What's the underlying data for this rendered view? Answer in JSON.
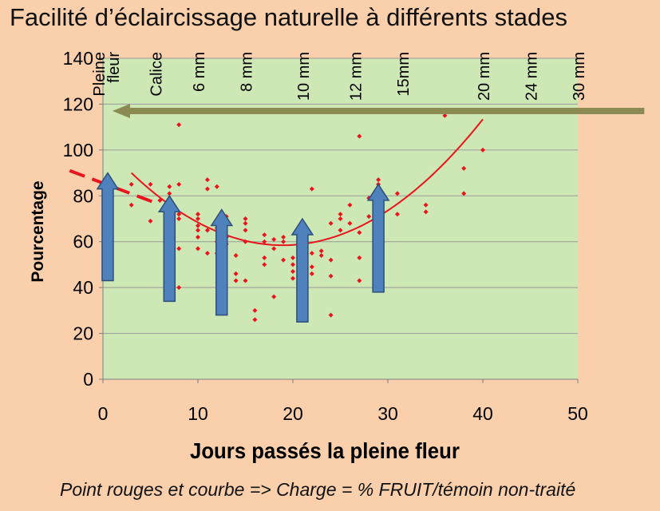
{
  "title": "Facilité d’éclaircissage naturelle  à différents stades",
  "caption": "Point rouges et courbe =>  Charge = % FRUIT/témoin non-traité",
  "colors": {
    "background": "#f9cfac",
    "plot_area": "#cde8b4",
    "points": "#e8141e",
    "curve": "#e8141e",
    "arrows": "#4f81bd",
    "arrow_outline": "#2e4f7a",
    "horizontal_arrow": "#8a8a52",
    "gridline": "#9a9a9a"
  },
  "chart_data": {
    "type": "scatter",
    "title": "Facilité d’éclaircissage naturelle  à différents stades",
    "xlabel": "Jours passés la pleine fleur",
    "ylabel": "Pourcentage",
    "xlim": [
      0,
      50
    ],
    "ylim": [
      0,
      140
    ],
    "x_ticks": [
      0,
      10,
      20,
      30,
      40,
      50
    ],
    "y_ticks": [
      0,
      20,
      40,
      60,
      80,
      100,
      120,
      140
    ],
    "grid": "horizontal",
    "stages": [
      {
        "label": "Pleine",
        "x": 0
      },
      {
        "label": "fleur",
        "x": 1.5
      },
      {
        "label": "Calice",
        "x": 6
      },
      {
        "label": "6 mm",
        "x": 10.5
      },
      {
        "label": "8 mm",
        "x": 15.5
      },
      {
        "label": "10 mm",
        "x": 21.5
      },
      {
        "label": "12 mm",
        "x": 27
      },
      {
        "label": "15mm",
        "x": 32
      },
      {
        "label": "20 mm",
        "x": 40.5
      },
      {
        "label": "24 mm",
        "x": 45.5
      },
      {
        "label": "30 mm",
        "x": 50.5
      }
    ],
    "points": [
      [
        3,
        85
      ],
      [
        3,
        76
      ],
      [
        5,
        85
      ],
      [
        5,
        69
      ],
      [
        6,
        78
      ],
      [
        7,
        84
      ],
      [
        7,
        81
      ],
      [
        7,
        72
      ],
      [
        7,
        67
      ],
      [
        7,
        64
      ],
      [
        7,
        60
      ],
      [
        8,
        111
      ],
      [
        8,
        85
      ],
      [
        8,
        72
      ],
      [
        8,
        70
      ],
      [
        8,
        57
      ],
      [
        8,
        40
      ],
      [
        10,
        72
      ],
      [
        10,
        70
      ],
      [
        10,
        67
      ],
      [
        10,
        65
      ],
      [
        10,
        62
      ],
      [
        10,
        57
      ],
      [
        11,
        87
      ],
      [
        11,
        83
      ],
      [
        11,
        65
      ],
      [
        11,
        55
      ],
      [
        12,
        84
      ],
      [
        12,
        66
      ],
      [
        12,
        60
      ],
      [
        12,
        55
      ],
      [
        13,
        71
      ],
      [
        13,
        68
      ],
      [
        13,
        62
      ],
      [
        13,
        59
      ],
      [
        14,
        54
      ],
      [
        14,
        46
      ],
      [
        14,
        43
      ],
      [
        15,
        70
      ],
      [
        15,
        68
      ],
      [
        15,
        65
      ],
      [
        15,
        60
      ],
      [
        15,
        43
      ],
      [
        16,
        30
      ],
      [
        16,
        26
      ],
      [
        17,
        63
      ],
      [
        17,
        60
      ],
      [
        17,
        53
      ],
      [
        17,
        50
      ],
      [
        18,
        61
      ],
      [
        18,
        57
      ],
      [
        18,
        36
      ],
      [
        19,
        62
      ],
      [
        19,
        60
      ],
      [
        19,
        52
      ],
      [
        20,
        53
      ],
      [
        20,
        50
      ],
      [
        20,
        47
      ],
      [
        20,
        44
      ],
      [
        21,
        66
      ],
      [
        21,
        52
      ],
      [
        22,
        83
      ],
      [
        22,
        55
      ],
      [
        22,
        49
      ],
      [
        22,
        46
      ],
      [
        23,
        56
      ],
      [
        23,
        54
      ],
      [
        24,
        68
      ],
      [
        24,
        52
      ],
      [
        24,
        45
      ],
      [
        24,
        28
      ],
      [
        25,
        72
      ],
      [
        25,
        70
      ],
      [
        25,
        65
      ],
      [
        26,
        76
      ],
      [
        26,
        68
      ],
      [
        27,
        106
      ],
      [
        27,
        64
      ],
      [
        27,
        53
      ],
      [
        27,
        43
      ],
      [
        28,
        79
      ],
      [
        28,
        71
      ],
      [
        29,
        87
      ],
      [
        29,
        85
      ],
      [
        29,
        82
      ],
      [
        29,
        77
      ],
      [
        31,
        81
      ],
      [
        31,
        72
      ],
      [
        34,
        76
      ],
      [
        34,
        73
      ],
      [
        36,
        115
      ],
      [
        38,
        92
      ],
      [
        38,
        81
      ],
      [
        40,
        100
      ]
    ],
    "trend_curve": {
      "type": "quadratic",
      "x_range": [
        3,
        40
      ],
      "coefficients": [
        103,
        -4.7,
        0.124
      ]
    },
    "trend_extension": [
      [
        -3.5,
        91
      ],
      [
        5.5,
        77
      ]
    ],
    "annotations": {
      "vertical_arrows": [
        {
          "x": 0.5,
          "from": 43,
          "to": 90
        },
        {
          "x": 7,
          "from": 34,
          "to": 80
        },
        {
          "x": 12.5,
          "from": 28,
          "to": 74
        },
        {
          "x": 21,
          "from": 25,
          "to": 70
        },
        {
          "x": 29,
          "from": 38,
          "to": 85
        }
      ],
      "horizontal_arrow": {
        "y": 117,
        "from": 57,
        "to": 1
      }
    }
  }
}
